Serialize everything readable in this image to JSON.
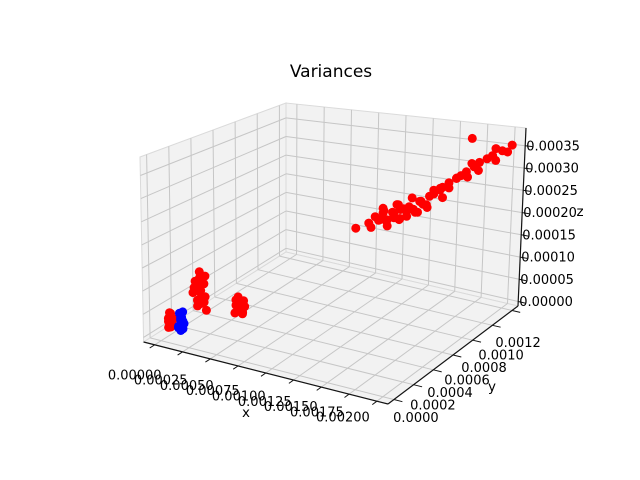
{
  "chart_data": {
    "type": "scatter",
    "subtype": "scatter3d",
    "title": "Variances",
    "grid": true,
    "legend": null,
    "view": {
      "elev": 30,
      "azim": -60
    },
    "point_colors": {
      "red": "#ff0000",
      "blue": "#0000ff"
    },
    "x_axis": {
      "label": "x",
      "lim": [
        -0.0001,
        0.0021
      ],
      "tick_values": [
        0.0,
        0.00025,
        0.0005,
        0.00075,
        0.001,
        0.00125,
        0.0015,
        0.00175,
        0.002
      ],
      "tick_labels": [
        "0.00000",
        "0.00025",
        "0.00050",
        "0.00075",
        "0.00100",
        "0.00125",
        "0.00150",
        "0.00175",
        "0.00200"
      ]
    },
    "y_axis": {
      "label": "y",
      "lim": [
        -6e-05,
        0.00126
      ],
      "tick_values": [
        0.0,
        0.0002,
        0.0004,
        0.0006,
        0.0008,
        0.001,
        0.0012
      ],
      "tick_labels": [
        "0.0000",
        "0.0002",
        "0.0004",
        "0.0006",
        "0.0008",
        "0.0010",
        "0.0012"
      ]
    },
    "z_axis": {
      "label": "z",
      "lim": [
        -1e-05,
        0.00039
      ],
      "tick_values": [
        0.0,
        5e-05,
        0.0001,
        0.00015,
        0.0002,
        0.00025,
        0.0003,
        0.00035
      ],
      "tick_labels": [
        "0.00000",
        "0.00005",
        "0.00010",
        "0.00015",
        "0.00020",
        "0.00025",
        "0.00030",
        "0.00035"
      ]
    },
    "series": [
      {
        "name": "red",
        "color": "#ff0000",
        "points": [
          [
            3e-05,
            4e-05,
            1.5e-05
          ],
          [
            5e-05,
            5e-05,
            2e-05
          ],
          [
            4e-05,
            3e-05,
            3e-05
          ],
          [
            6e-05,
            5e-05,
            3.5e-05
          ],
          [
            3e-05,
            6e-05,
            2.5e-05
          ],
          [
            5e-05,
            4e-05,
            4e-05
          ],
          [
            4e-05,
            5e-05,
            1.5e-05
          ],
          [
            3e-05,
            4e-05,
            3.5e-05
          ],
          [
            6e-05,
            3e-05,
            2.5e-05
          ],
          [
            5e-05,
            6e-05,
            3e-05
          ],
          [
            4e-05,
            5e-05,
            4.5e-05
          ],
          [
            5e-05,
            3e-05,
            5e-05
          ],
          [
            4e-05,
            0.0003,
            2.5e-05
          ],
          [
            6e-05,
            0.00031,
            3e-05
          ],
          [
            5e-05,
            0.00029,
            4e-05
          ],
          [
            7e-05,
            0.0003,
            4.5e-05
          ],
          [
            4e-05,
            0.00032,
            5.5e-05
          ],
          [
            6e-05,
            0.00031,
            6e-05
          ],
          [
            5e-05,
            0.0003,
            7e-05
          ],
          [
            7e-05,
            0.00029,
            7.5e-05
          ],
          [
            5e-05,
            0.00031,
            8.5e-05
          ],
          [
            6e-05,
            0.0003,
            9e-05
          ],
          [
            4e-05,
            0.00032,
            0.0001
          ],
          [
            0.00011,
            0.0003,
            5e-05
          ],
          [
            1e-05,
            0.0003,
            6.5e-05
          ],
          [
            9e-05,
            0.00031,
            3.5e-05
          ],
          [
            2e-05,
            0.0003,
            8e-05
          ],
          [
            0.0001,
            0.00031,
            9.5e-05
          ],
          [
            0.00012,
            0.0003,
            2e-05
          ],
          [
            1e-05,
            0.00029,
            5.5e-05
          ],
          [
            8e-05,
            0.00032,
            7.5e-05
          ],
          [
            6e-05,
            0.0003,
            4.2e-05
          ],
          [
            0.00038,
            0.0003,
            3e-05
          ],
          [
            0.00042,
            0.00031,
            4e-05
          ],
          [
            0.0004,
            0.00029,
            5e-05
          ],
          [
            0.00045,
            0.0003,
            3.5e-05
          ],
          [
            0.00043,
            0.00032,
            5.5e-05
          ],
          [
            0.00041,
            0.0003,
            6.5e-05
          ],
          [
            0.00046,
            0.00029,
            4.5e-05
          ],
          [
            0.00044,
            0.00031,
            3e-05
          ],
          [
            0.00039,
            0.0003,
            6e-05
          ],
          [
            0.00047,
            0.0003,
            5e-05
          ],
          [
            0.00042,
            0.00029,
            7e-05
          ],
          [
            0.00045,
            0.00031,
            6e-05
          ],
          [
            0.0004,
            0.00031,
            4e-05
          ],
          [
            0.00043,
            0.0003,
            5.2e-05
          ],
          [
            0.00102,
            0.00078,
            0.00019
          ],
          [
            0.0011,
            0.00082,
            0.0002
          ],
          [
            0.00114,
            0.0008,
            0.000195
          ],
          [
            0.00116,
            0.00085,
            0.000205
          ],
          [
            0.00118,
            0.00083,
            0.00021
          ],
          [
            0.0012,
            0.00088,
            0.000202
          ],
          [
            0.00121,
            0.00081,
            0.000215
          ],
          [
            0.00123,
            0.00086,
            0.000208
          ],
          [
            0.00124,
            0.0009,
            0.00022
          ],
          [
            0.00125,
            0.00084,
            0.000198
          ],
          [
            0.00126,
            0.00089,
            0.000212
          ],
          [
            0.00128,
            0.00087,
            0.000225
          ],
          [
            0.00129,
            0.00092,
            0.000205
          ],
          [
            0.0013,
            0.00085,
            0.000218
          ],
          [
            0.00131,
            0.0009,
            0.00023
          ],
          [
            0.00132,
            0.00088,
            0.00021
          ],
          [
            0.00134,
            0.00093,
            0.000222
          ],
          [
            0.00135,
            0.00089,
            0.000235
          ],
          [
            0.00136,
            0.00091,
            0.000215
          ],
          [
            0.00138,
            0.00094,
            0.000228
          ],
          [
            0.00139,
            0.0009,
            0.00024
          ],
          [
            0.0014,
            0.00095,
            0.00022
          ],
          [
            0.00141,
            0.00092,
            0.000232
          ],
          [
            0.00143,
            0.00096,
            0.000245
          ],
          [
            0.00144,
            0.00093,
            0.000225
          ],
          [
            0.00145,
            0.00097,
            0.000238
          ],
          [
            0.00146,
            0.00094,
            0.00025
          ],
          [
            0.00148,
            0.00098,
            0.00023
          ],
          [
            0.0015,
            0.00095,
            0.000242
          ],
          [
            0.00122,
            0.00083,
            0.000228
          ],
          [
            0.00127,
            0.00091,
            0.000238
          ],
          [
            0.00133,
            0.00086,
            0.000248
          ],
          [
            0.00112,
            0.00086,
            0.00021
          ],
          [
            0.00117,
            0.00089,
            0.000222
          ],
          [
            0.00149,
            0.00099,
            0.000255
          ],
          [
            0.00137,
            0.00095,
            0.000252
          ],
          [
            0.0012,
            0.00085,
            0.000235
          ],
          [
            0.00152,
            0.001,
            0.00026
          ],
          [
            0.00155,
            0.00103,
            0.00027
          ],
          [
            0.00153,
            0.00105,
            0.000262
          ],
          [
            0.00158,
            0.00102,
            0.000275
          ],
          [
            0.0016,
            0.00106,
            0.00028
          ],
          [
            0.00162,
            0.00104,
            0.000272
          ],
          [
            0.00165,
            0.00108,
            0.00029
          ],
          [
            0.00163,
            0.0011,
            0.000285
          ],
          [
            0.00168,
            0.00109,
            0.000295
          ],
          [
            0.0017,
            0.00112,
            0.0003
          ],
          [
            0.00173,
            0.0011,
            0.000292
          ],
          [
            0.00175,
            0.00114,
            0.00031
          ],
          [
            0.00178,
            0.00116,
            0.000318
          ],
          [
            0.0018,
            0.00113,
            0.000305
          ],
          [
            0.00183,
            0.00118,
            0.000325
          ],
          [
            0.00186,
            0.0012,
            0.00033
          ],
          [
            0.0019,
            0.00119,
            0.000322
          ],
          [
            0.00193,
            0.00122,
            0.00034
          ],
          [
            0.00196,
            0.00124,
            0.000335
          ],
          [
            0.00188,
            0.00121,
            0.000345
          ],
          [
            0.00199,
            0.00125,
            0.00035
          ],
          [
            0.00165,
            0.00122,
            0.00036
          ],
          [
            0.00172,
            0.00115,
            0.000315
          ],
          [
            0.0016,
            0.001,
            0.000255
          ],
          [
            0.0015,
            0.00102,
            0.000265
          ]
        ]
      },
      {
        "name": "blue",
        "color": "#0000ff",
        "points": [
          [
            0.00012,
            4e-05,
            2e-05
          ],
          [
            0.00014,
            5e-05,
            3e-05
          ],
          [
            0.00013,
            3e-05,
            2.5e-05
          ],
          [
            0.00015,
            5e-05,
            3.5e-05
          ],
          [
            0.00016,
            4e-05,
            2e-05
          ],
          [
            0.00013,
            6e-05,
            4e-05
          ],
          [
            0.00015,
            3e-05,
            4.5e-05
          ],
          [
            0.00012,
            5e-05,
            5e-05
          ],
          [
            0.00014,
            4e-05,
            1.5e-05
          ],
          [
            0.00016,
            5e-05,
            3e-05
          ],
          [
            0.00015,
            5e-05,
            5.5e-05
          ],
          [
            0.00014,
            4e-05,
            3.8e-05
          ]
        ]
      }
    ]
  }
}
